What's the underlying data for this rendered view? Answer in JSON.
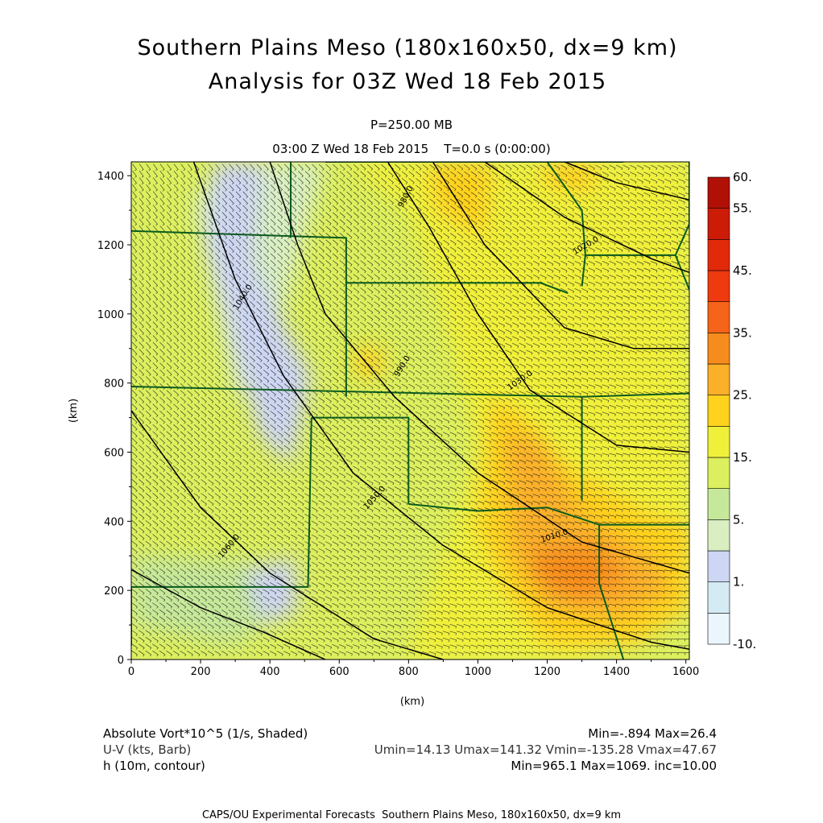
{
  "header": {
    "title_line1": "Southern Plains Meso (180x160x50, dx=9 km)",
    "title_line2": "Analysis for 03Z Wed 18 Feb 2015",
    "level": "P=250.00 MB",
    "time": "03:00 Z Wed 18 Feb 2015    T=0.0 s (0:00:00)"
  },
  "colors": {
    "background": "#ffffff",
    "boundary": "#0a5a1e",
    "contour": "#000000",
    "barb": "#1a1a1a"
  },
  "chart_data": {
    "type": "heatmap",
    "xlabel": "(km)",
    "ylabel": "(km)",
    "xlim": [
      0,
      1610
    ],
    "ylim": [
      0,
      1440
    ],
    "xticks": [
      "0",
      "200",
      "400",
      "600",
      "800",
      "1000",
      "1200",
      "1400",
      "1600"
    ],
    "yticks": [
      "0",
      "200",
      "400",
      "600",
      "800",
      "1000",
      "1200",
      "1400"
    ],
    "colorbar": {
      "levels": [
        -10,
        0,
        1,
        3,
        5,
        10,
        15,
        20,
        25,
        30,
        35,
        40,
        45,
        50,
        55,
        60
      ],
      "labels": [
        "60.",
        "55.",
        "45.",
        "35.",
        "25.",
        "15.",
        "5.",
        "1.",
        "-10."
      ],
      "colors": [
        "#eaf6fb",
        "#d4ebf4",
        "#cdd6f2",
        "#d9efc2",
        "#c6e89a",
        "#dcef5e",
        "#f0f03a",
        "#ffd21e",
        "#fbb02a",
        "#f78c1e",
        "#f56418",
        "#ef3a10",
        "#e22a0a",
        "#cc1c08",
        "#b01006"
      ]
    },
    "shading_zones": [
      {
        "field": "absolute vorticity",
        "region": "northwest band",
        "range": "1-3"
      },
      {
        "field": "absolute vorticity",
        "region": "central",
        "range": "10-15"
      },
      {
        "field": "absolute vorticity",
        "region": "southeast",
        "range": "20-26.4"
      }
    ],
    "contours": [
      {
        "label": "1060.0",
        "level": 1060
      },
      {
        "label": "1050.0",
        "level": 1050
      },
      {
        "label": "1040.0",
        "level": 1040
      },
      {
        "label": "1030.0",
        "level": 1030
      },
      {
        "label": "1020.0",
        "level": 1020
      },
      {
        "label": "1010.0",
        "level": 1010
      },
      {
        "label": "1000.0",
        "level": 1000
      },
      {
        "label": "990.0",
        "level": 990
      },
      {
        "label": "980.0",
        "level": 980
      }
    ],
    "legend": [
      {
        "name": "Absolute Vort*10^5 (1/s, Shaded)",
        "stats": "Min=-.894 Max=26.4"
      },
      {
        "name": "U-V (kts, Barb)",
        "stats": "Umin=14.13 Umax=141.32 Vmin=-135.28 Vmax=47.67"
      },
      {
        "name": "h (10m, contour)",
        "stats": "Min=965.1 Max=1069. inc=10.00"
      }
    ]
  },
  "footer": {
    "credit": "CAPS/OU Experimental Forecasts  Southern Plains Meso, 180x160x50, dx=9 km"
  }
}
